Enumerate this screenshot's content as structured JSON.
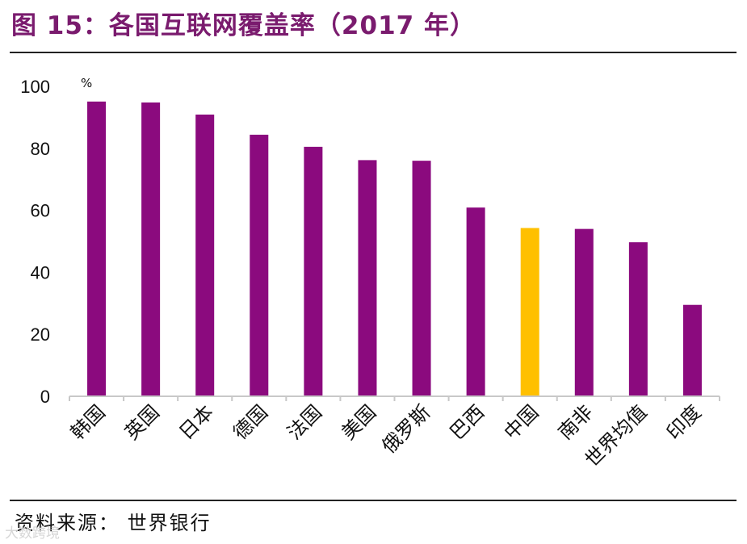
{
  "header": {
    "title": "图 15：各国互联网覆盖率（2017 年）"
  },
  "footer": {
    "source": "资料来源：  世界银行",
    "watermark": "大数跨境"
  },
  "colors": {
    "title": "#7a1b6e",
    "bar": "#8b0a7e",
    "highlight": "#ffc000",
    "axis": "#c8c8c8"
  },
  "chart_data": {
    "type": "bar",
    "title": "各国互联网覆盖率（2017 年）",
    "unit": "%",
    "xlabel": "",
    "ylabel": "%",
    "ylim": [
      0,
      100
    ],
    "yticks": [
      0,
      20,
      40,
      60,
      80,
      100
    ],
    "categories": [
      "韩国",
      "英国",
      "日本",
      "德国",
      "法国",
      "美国",
      "俄罗斯",
      "巴西",
      "中国",
      "南非",
      "世界均值",
      "印度"
    ],
    "values": [
      95.1,
      94.8,
      90.9,
      84.4,
      80.5,
      76.2,
      76.0,
      60.9,
      54.3,
      54.0,
      49.7,
      29.5
    ],
    "highlight": "中国",
    "grid": false,
    "legend": "none"
  }
}
